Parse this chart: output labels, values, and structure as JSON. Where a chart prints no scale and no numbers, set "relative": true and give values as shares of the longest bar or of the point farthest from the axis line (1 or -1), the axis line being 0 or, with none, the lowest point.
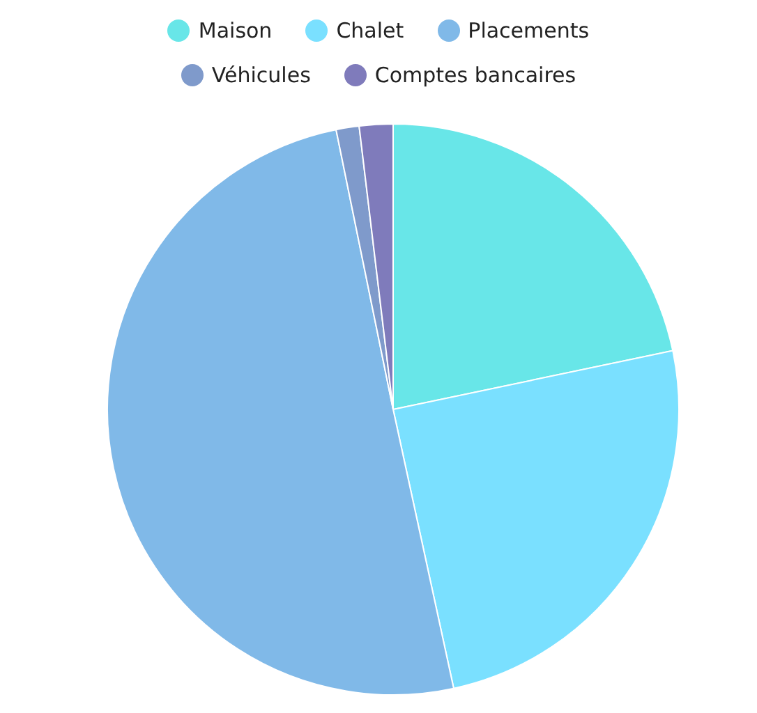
{
  "chart_data": {
    "type": "pie",
    "relative": true,
    "categories": [
      "Maison",
      "Chalet",
      "Placements",
      "Véhicules",
      "Comptes bancaires"
    ],
    "values": [
      21.7,
      24.9,
      50.2,
      1.3,
      1.9
    ],
    "colors": [
      "#68e6e8",
      "#7ae0ff",
      "#80b9e8",
      "#7f9acb",
      "#7f7bbb"
    ],
    "legend": "top"
  }
}
